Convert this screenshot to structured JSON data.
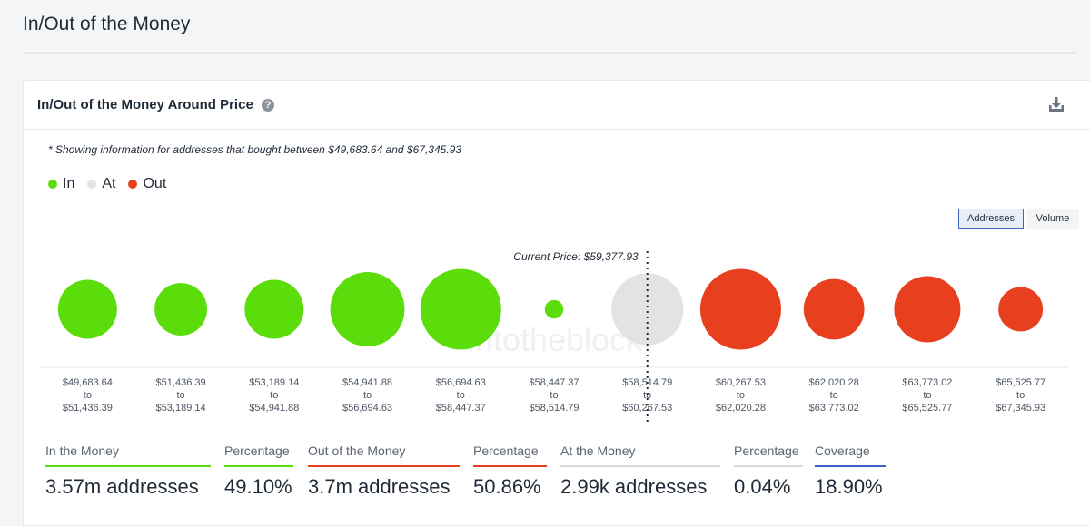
{
  "page": {
    "title": "In/Out of the Money"
  },
  "card": {
    "title": "In/Out of the Money Around Price",
    "help_glyph": "?",
    "note": "* Showing information for addresses that bought between $49,683.64 and $67,345.93"
  },
  "legend": [
    {
      "label": "In",
      "color": "#5bdd0b"
    },
    {
      "label": "At",
      "color": "#e3e3e3"
    },
    {
      "label": "Out",
      "color": "#e8401f"
    }
  ],
  "toggles": {
    "addresses": "Addresses",
    "volume": "Volume"
  },
  "chart_data": {
    "type": "bubble",
    "current_price_label": "Current Price: $59,377.93",
    "watermark": "intotheblock",
    "colors": {
      "in": "#5bdd0b",
      "at": "#e3e3e3",
      "out": "#e8401f"
    },
    "bins": [
      {
        "low": "$49,683.64",
        "high": "$51,436.39",
        "status": "in",
        "rel_size": 0.73
      },
      {
        "low": "$51,436.39",
        "high": "$53,189.14",
        "status": "in",
        "rel_size": 0.65
      },
      {
        "low": "$53,189.14",
        "high": "$54,941.88",
        "status": "in",
        "rel_size": 0.73
      },
      {
        "low": "$54,941.88",
        "high": "$56,694.63",
        "status": "in",
        "rel_size": 0.92
      },
      {
        "low": "$56,694.63",
        "high": "$58,447.37",
        "status": "in",
        "rel_size": 1.0
      },
      {
        "low": "$58,447.37",
        "high": "$58,514.79",
        "status": "in",
        "rel_size": 0.23
      },
      {
        "low": "$58,514.79",
        "high": "$60,267.53",
        "status": "at",
        "rel_size": 0.89
      },
      {
        "low": "$60,267.53",
        "high": "$62,020.28",
        "status": "out",
        "rel_size": 1.0
      },
      {
        "low": "$62,020.28",
        "high": "$63,773.02",
        "status": "out",
        "rel_size": 0.75
      },
      {
        "low": "$63,773.02",
        "high": "$65,525.77",
        "status": "out",
        "rel_size": 0.82
      },
      {
        "low": "$65,525.77",
        "high": "$67,345.93",
        "status": "out",
        "rel_size": 0.55
      }
    ],
    "range_joiner": "to"
  },
  "stats": [
    {
      "label": "In the Money",
      "value": "3.57m addresses",
      "color": "#5bdd0b"
    },
    {
      "label": "Percentage",
      "value": "49.10%",
      "color": "#5bdd0b"
    },
    {
      "label": "Out of the Money",
      "value": "3.7m addresses",
      "color": "#e8401f"
    },
    {
      "label": "Percentage",
      "value": "50.86%",
      "color": "#e8401f"
    },
    {
      "label": "At the Money",
      "value": "2.99k addresses",
      "color": "#d9d9d9"
    },
    {
      "label": "Percentage",
      "value": "0.04%",
      "color": "#d9d9d9"
    },
    {
      "label": "Coverage",
      "value": "18.90%",
      "color": "#3b63c8"
    }
  ]
}
